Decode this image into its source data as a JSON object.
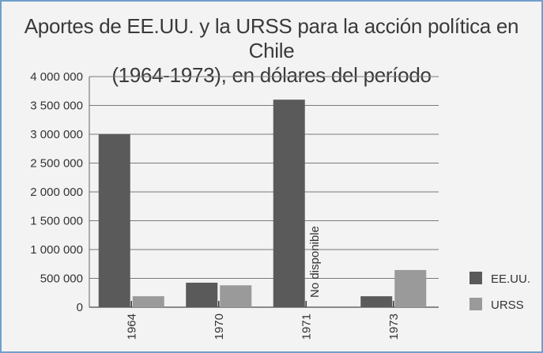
{
  "chart_data": {
    "type": "bar",
    "title": "Aportes de EE.UU. y la URSS para la acción política en Chile",
    "subtitle": "(1964-1973), en dólares del período",
    "categories": [
      "1964",
      "1970",
      "1971",
      "1973"
    ],
    "series": [
      {
        "name": "EE.UU.",
        "values": [
          3000000,
          425000,
          3600000,
          190000
        ],
        "color": "#5a5a5a"
      },
      {
        "name": "URSS",
        "values": [
          190000,
          380000,
          null,
          645000
        ],
        "color": "#9a9a9a"
      }
    ],
    "annotations": [
      {
        "category": "1971",
        "series": "URSS",
        "text": "No disponible"
      }
    ],
    "ylim": [
      0,
      4000000
    ],
    "y_ticks": [
      {
        "value": 0,
        "label": "0"
      },
      {
        "value": 500000,
        "label": "500 000"
      },
      {
        "value": 1000000,
        "label": "1 000 000"
      },
      {
        "value": 1500000,
        "label": "1 500 000"
      },
      {
        "value": 2000000,
        "label": "2 000 000"
      },
      {
        "value": 2500000,
        "label": "2 500 000"
      },
      {
        "value": 3000000,
        "label": "3 000 000"
      },
      {
        "value": 3500000,
        "label": "3 500 000"
      },
      {
        "value": 4000000,
        "label": "4 000 000"
      }
    ],
    "grid": true,
    "legend_position": "right"
  }
}
